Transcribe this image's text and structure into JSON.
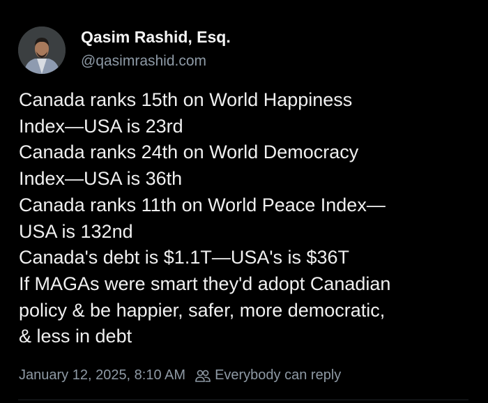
{
  "author": {
    "name": "Qasim Rashid, Esq.",
    "handle": "@qasimrashid.com"
  },
  "post": {
    "lines": [
      "Canada ranks 15th on World Happiness",
      "Index—USA is 23rd",
      "Canada ranks 24th on World Democracy",
      "Index—USA is 36th",
      "Canada ranks 11th on World Peace Index—",
      "USA is 132nd",
      "Canada's debt is $1.1T—USA's is $36T",
      "If MAGAs were smart they'd adopt Canadian",
      "policy & be happier, safer, more democratic,",
      "& less in debt"
    ]
  },
  "footer": {
    "timestamp": "January 12, 2025, 8:10 AM",
    "reply_icon": "people-icon",
    "reply_setting": "Everybody can reply"
  }
}
